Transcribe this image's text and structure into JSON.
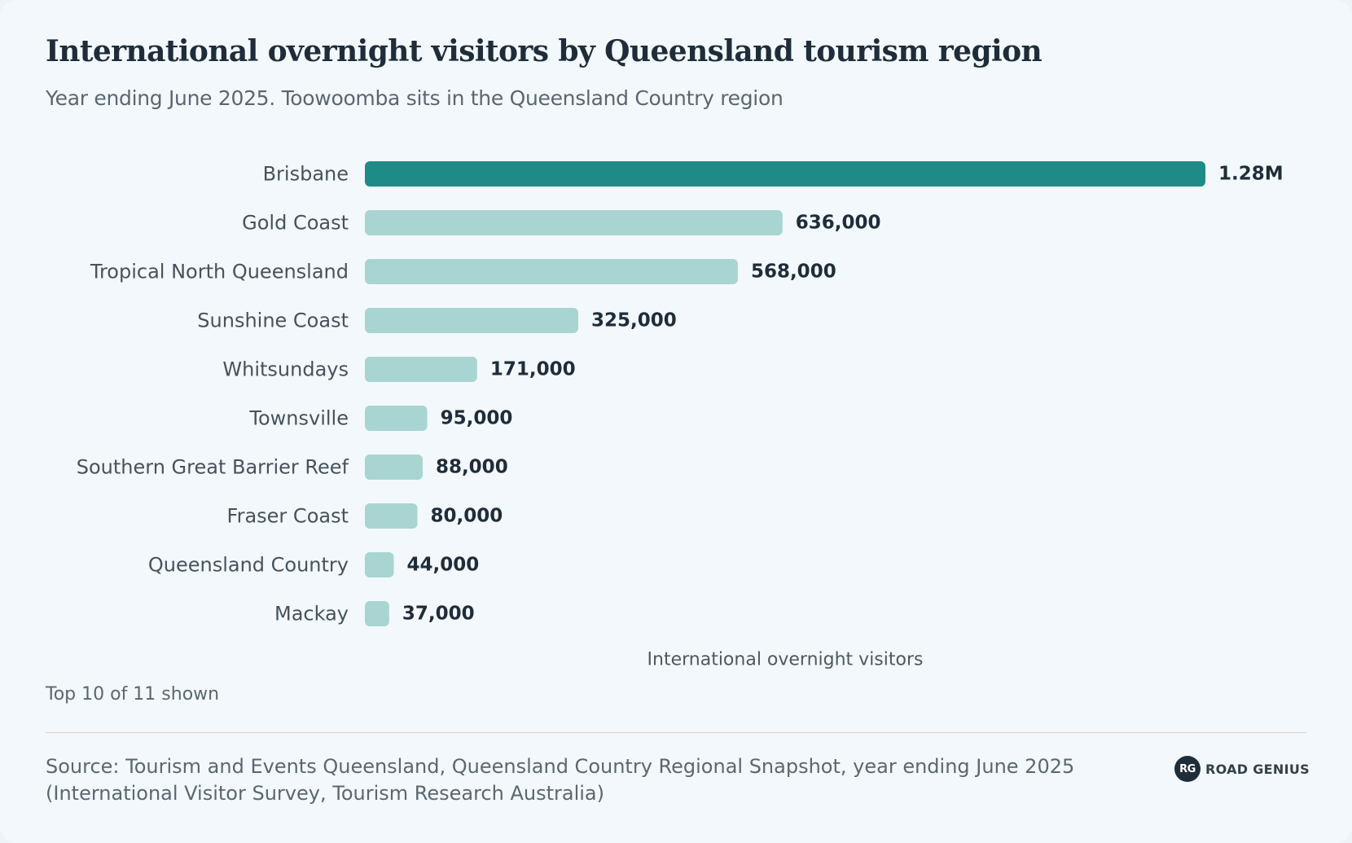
{
  "title": "International overnight visitors by Queensland tourism region",
  "subtitle": "Year ending June 2025. Toowoomba sits in the Queensland Country region",
  "note": "Top 10 of 11 shown",
  "source": "Source: Tourism and Events Queensland, Queensland Country Regional Snapshot, year ending June 2025 (International Visitor Survey, Tourism Research Australia)",
  "brand": {
    "badge": "RG",
    "name": "ROAD GENIUS"
  },
  "colors": {
    "highlight": "#1f8b87",
    "bar": "#a8d5d2",
    "background": "#f3f8fd"
  },
  "chart_data": {
    "type": "bar",
    "orientation": "horizontal",
    "categories": [
      "Brisbane",
      "Gold Coast",
      "Tropical North Queensland",
      "Sunshine Coast",
      "Whitsundays",
      "Townsville",
      "Southern Great Barrier Reef",
      "Fraser Coast",
      "Queensland Country",
      "Mackay"
    ],
    "values": [
      1280000,
      636000,
      568000,
      325000,
      171000,
      95000,
      88000,
      80000,
      44000,
      37000
    ],
    "value_labels": [
      "1.28M",
      "636,000",
      "568,000",
      "325,000",
      "171,000",
      "95,000",
      "88,000",
      "80,000",
      "44,000",
      "37,000"
    ],
    "highlight_index": 0,
    "xlabel": "International overnight visitors",
    "grid": false,
    "legend": "none"
  }
}
